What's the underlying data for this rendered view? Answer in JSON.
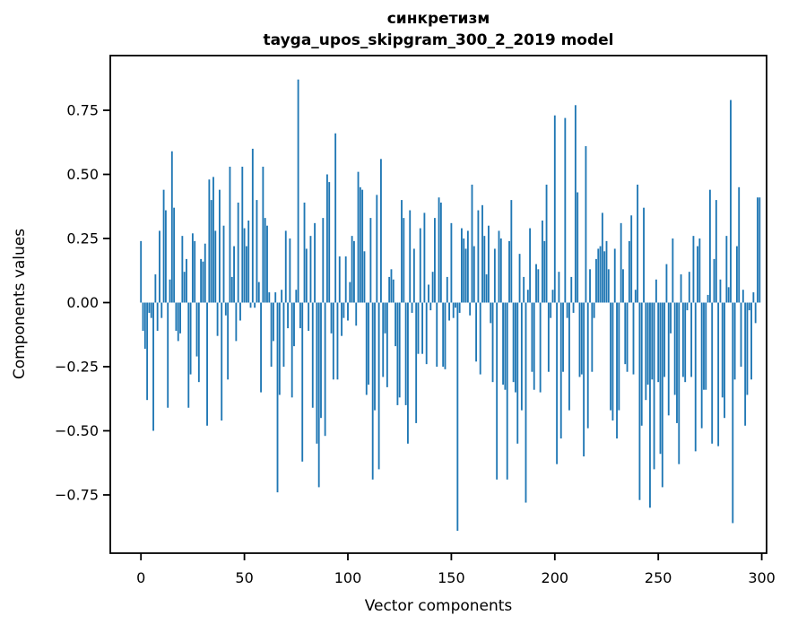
{
  "chart_data": {
    "type": "bar",
    "title": "синкретизм",
    "subtitle": "tayga_upos_skipgram_300_2_2019 model",
    "xlabel": "Vector components",
    "ylabel": "Components values",
    "bar_color": "#1f77b4",
    "axis_color": "#000000",
    "background_color": "#ffffff",
    "grid": false,
    "legend_position": "none",
    "x_ticks": [
      0,
      50,
      100,
      150,
      200,
      250,
      300
    ],
    "x_tick_labels": [
      "0",
      "50",
      "100",
      "150",
      "200",
      "250",
      "300"
    ],
    "y_ticks": [
      0.75,
      0.5,
      0.25,
      0.0,
      -0.25,
      -0.5,
      -0.75
    ],
    "y_tick_labels": [
      "0.75",
      "0.50",
      "0.25",
      "0.00",
      "−0.25",
      "−0.50",
      "−0.75"
    ],
    "xlim": [
      -15,
      302
    ],
    "ylim": [
      -0.98,
      0.96
    ],
    "n_components": 300,
    "values": [
      0.24,
      -0.11,
      -0.18,
      -0.38,
      -0.04,
      -0.06,
      -0.5,
      0.11,
      -0.11,
      0.28,
      -0.06,
      0.44,
      0.36,
      -0.41,
      0.09,
      0.59,
      0.37,
      -0.11,
      -0.15,
      -0.12,
      0.26,
      0.12,
      0.17,
      -0.41,
      -0.28,
      0.27,
      0.24,
      -0.21,
      -0.31,
      0.17,
      0.16,
      0.23,
      -0.48,
      0.48,
      0.4,
      0.49,
      0.28,
      -0.13,
      0.44,
      -0.46,
      0.3,
      -0.05,
      -0.3,
      0.53,
      0.1,
      0.22,
      -0.15,
      0.39,
      -0.07,
      0.53,
      0.29,
      0.22,
      0.32,
      -0.02,
      0.6,
      -0.02,
      0.4,
      0.08,
      -0.35,
      0.53,
      0.33,
      0.3,
      0.04,
      -0.25,
      -0.15,
      0.04,
      -0.74,
      -0.36,
      0.05,
      -0.25,
      0.28,
      -0.1,
      0.25,
      -0.37,
      -0.17,
      0.05,
      0.87,
      -0.1,
      -0.62,
      0.39,
      0.21,
      -0.11,
      0.26,
      -0.41,
      0.31,
      -0.55,
      -0.72,
      -0.45,
      0.33,
      -0.52,
      0.5,
      0.47,
      -0.12,
      -0.3,
      0.66,
      -0.3,
      0.18,
      -0.13,
      -0.06,
      0.18,
      -0.07,
      0.08,
      0.26,
      0.24,
      -0.09,
      0.51,
      0.45,
      0.44,
      0.2,
      -0.36,
      -0.32,
      0.33,
      -0.69,
      -0.42,
      0.42,
      -0.65,
      0.56,
      -0.29,
      -0.12,
      -0.33,
      0.1,
      0.13,
      0.09,
      -0.17,
      -0.4,
      -0.37,
      0.4,
      0.33,
      -0.4,
      -0.55,
      0.36,
      -0.04,
      0.21,
      -0.47,
      -0.2,
      0.29,
      -0.2,
      0.35,
      -0.24,
      0.07,
      -0.03,
      0.12,
      0.33,
      -0.25,
      0.41,
      0.39,
      -0.25,
      -0.26,
      0.1,
      -0.07,
      0.31,
      -0.06,
      -0.02,
      -0.89,
      -0.04,
      0.29,
      0.25,
      0.21,
      0.28,
      -0.05,
      0.46,
      0.22,
      -0.23,
      0.36,
      -0.28,
      0.38,
      0.26,
      0.11,
      0.3,
      -0.08,
      -0.31,
      0.21,
      -0.69,
      0.28,
      0.25,
      -0.32,
      -0.34,
      -0.69,
      0.24,
      0.4,
      -0.31,
      -0.35,
      -0.55,
      0.19,
      -0.42,
      0.1,
      -0.78,
      0.05,
      0.29,
      -0.27,
      -0.34,
      0.15,
      0.13,
      -0.35,
      0.32,
      0.24,
      0.46,
      -0.27,
      -0.06,
      0.05,
      0.73,
      -0.63,
      0.12,
      -0.53,
      -0.27,
      0.72,
      -0.06,
      -0.42,
      0.1,
      -0.04,
      0.77,
      0.43,
      -0.29,
      -0.28,
      -0.6,
      0.61,
      -0.49,
      0.13,
      -0.27,
      -0.06,
      0.17,
      0.21,
      0.22,
      0.35,
      0.2,
      0.24,
      0.13,
      -0.42,
      -0.46,
      0.21,
      -0.53,
      -0.42,
      0.31,
      0.13,
      -0.24,
      -0.27,
      0.24,
      0.34,
      -0.28,
      0.05,
      0.46,
      -0.77,
      -0.48,
      0.37,
      -0.38,
      -0.32,
      -0.8,
      -0.3,
      -0.65,
      0.09,
      -0.31,
      -0.59,
      -0.72,
      -0.29,
      0.15,
      -0.44,
      -0.12,
      0.25,
      -0.36,
      -0.47,
      -0.63,
      0.11,
      -0.29,
      -0.31,
      -0.03,
      0.12,
      -0.29,
      0.26,
      -0.58,
      0.22,
      0.25,
      -0.49,
      -0.34,
      -0.34,
      0.03,
      0.44,
      -0.55,
      0.17,
      0.4,
      -0.56,
      0.09,
      -0.37,
      -0.45,
      0.26,
      0.06,
      0.79,
      -0.86,
      -0.3,
      0.22,
      0.45,
      -0.25,
      0.05,
      -0.48,
      -0.36,
      -0.03,
      -0.3,
      0.04,
      -0.08,
      0.41,
      0.41
    ]
  }
}
